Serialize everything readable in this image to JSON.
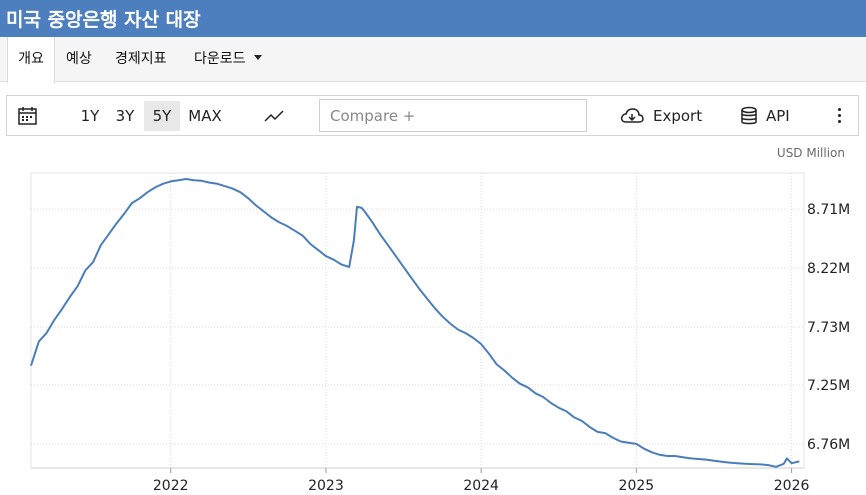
{
  "header": {
    "title": "미국 중앙은행 자산 대장"
  },
  "tabs": [
    {
      "label": "개요",
      "active": true
    },
    {
      "label": "예상",
      "active": false
    },
    {
      "label": "경제지표",
      "active": false
    },
    {
      "label": "다운로드",
      "active": false,
      "dropdown": true
    }
  ],
  "toolbar": {
    "calendar_icon": "calendar-icon",
    "ranges": [
      {
        "label": "1Y",
        "active": false
      },
      {
        "label": "3Y",
        "active": false
      },
      {
        "label": "5Y",
        "active": true
      },
      {
        "label": "MAX",
        "active": false
      }
    ],
    "chart_type_icon": "line-chart-icon",
    "compare_placeholder": "Compare +",
    "export_label": "Export",
    "export_icon": "cloud-download-icon",
    "api_label": "API",
    "api_icon": "database-icon",
    "more_icon": "more-vertical-icon"
  },
  "chart_data": {
    "type": "line",
    "unit": "USD Million",
    "color": "#4a7ebb",
    "ylim": [
      6560000,
      9010000
    ],
    "yticks": [
      6760000,
      7250000,
      7730000,
      8220000,
      8710000
    ],
    "ytick_labels": [
      "6.76M",
      "7.25M",
      "7.73M",
      "8.22M",
      "8.71M"
    ],
    "xlim": [
      2021.1,
      2026.08
    ],
    "xticks": [
      2022,
      2023,
      2024,
      2025,
      2026
    ],
    "xtick_labels": [
      "2022",
      "2023",
      "2024",
      "2025",
      "2026"
    ],
    "grid": true,
    "series": [
      {
        "x": [
          2021.1,
          2021.15,
          2021.2,
          2021.25,
          2021.3,
          2021.35,
          2021.4,
          2021.45,
          2021.5,
          2021.55,
          2021.6,
          2021.65,
          2021.7,
          2021.75,
          2021.8,
          2021.85,
          2021.9,
          2021.95,
          2022.0,
          2022.05,
          2022.1,
          2022.15,
          2022.2,
          2022.25,
          2022.3,
          2022.35,
          2022.4,
          2022.45,
          2022.5,
          2022.55,
          2022.6,
          2022.65,
          2022.7,
          2022.75,
          2022.8,
          2022.85,
          2022.9,
          2022.95,
          2023.0,
          2023.05,
          2023.1,
          2023.15,
          2023.18,
          2023.2,
          2023.23,
          2023.25,
          2023.3,
          2023.35,
          2023.4,
          2023.45,
          2023.5,
          2023.55,
          2023.6,
          2023.65,
          2023.7,
          2023.75,
          2023.8,
          2023.85,
          2023.9,
          2023.95,
          2024.0,
          2024.05,
          2024.1,
          2024.15,
          2024.2,
          2024.25,
          2024.3,
          2024.35,
          2024.4,
          2024.45,
          2024.5,
          2024.55,
          2024.6,
          2024.65,
          2024.7,
          2024.75,
          2024.8,
          2024.85,
          2024.9,
          2024.95,
          2025.0,
          2025.05,
          2025.1,
          2025.15,
          2025.2,
          2025.25,
          2025.3,
          2025.35,
          2025.4,
          2025.45,
          2025.5,
          2025.55,
          2025.6,
          2025.65,
          2025.7,
          2025.75,
          2025.8,
          2025.85,
          2025.9,
          2025.95,
          2025.97,
          2026.0,
          2026.05
        ],
        "y": [
          7410000,
          7610000,
          7680000,
          7790000,
          7880000,
          7980000,
          8070000,
          8200000,
          8270000,
          8410000,
          8500000,
          8590000,
          8670000,
          8760000,
          8800000,
          8850000,
          8890000,
          8920000,
          8940000,
          8950000,
          8960000,
          8950000,
          8945000,
          8930000,
          8920000,
          8900000,
          8880000,
          8850000,
          8800000,
          8740000,
          8690000,
          8640000,
          8600000,
          8570000,
          8530000,
          8490000,
          8420000,
          8370000,
          8320000,
          8290000,
          8250000,
          8230000,
          8450000,
          8730000,
          8720000,
          8690000,
          8600000,
          8500000,
          8410000,
          8320000,
          8230000,
          8140000,
          8050000,
          7970000,
          7890000,
          7820000,
          7760000,
          7710000,
          7680000,
          7640000,
          7590000,
          7510000,
          7420000,
          7370000,
          7310000,
          7260000,
          7230000,
          7180000,
          7150000,
          7100000,
          7060000,
          7030000,
          6980000,
          6950000,
          6900000,
          6860000,
          6850000,
          6810000,
          6780000,
          6770000,
          6760000,
          6720000,
          6690000,
          6670000,
          6660000,
          6660000,
          6650000,
          6640000,
          6635000,
          6630000,
          6620000,
          6612000,
          6605000,
          6600000,
          6596000,
          6592000,
          6590000,
          6584000,
          6570000,
          6595000,
          6640000,
          6600000,
          6615000
        ]
      }
    ]
  }
}
